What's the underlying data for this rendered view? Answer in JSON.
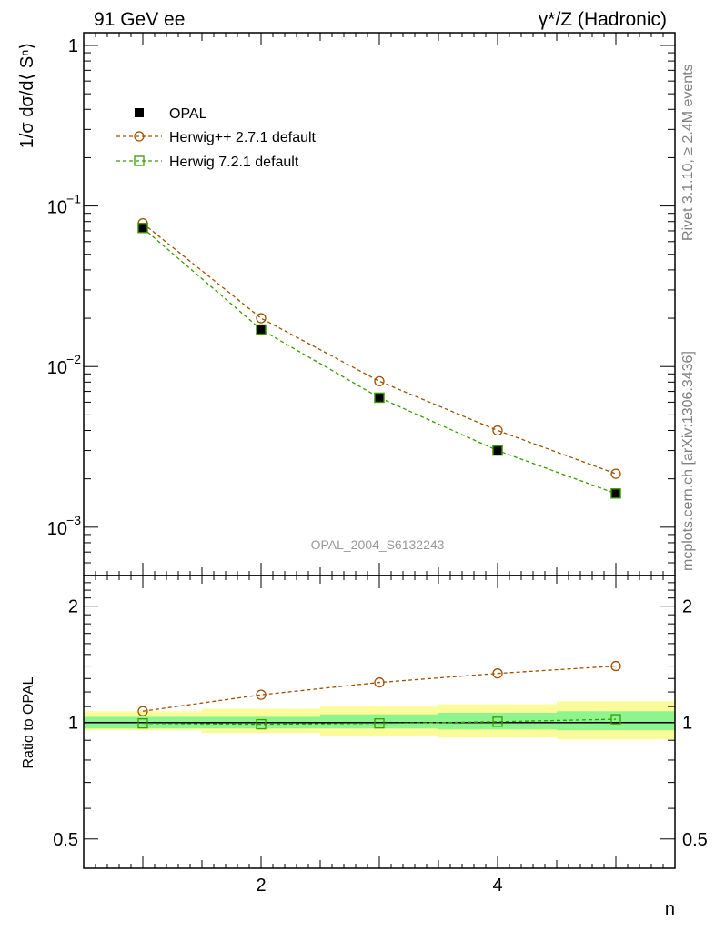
{
  "header": {
    "left": "91 GeV ee",
    "right": "γ*/Z (Hadronic)"
  },
  "side_labels": {
    "rivet": "Rivet 3.1.10, ≥ 2.4M events",
    "mcplots": "mcplots.cern.ch [arXiv:1306.3436]"
  },
  "watermark": "OPAL_2004_S6132243",
  "colors": {
    "data": "#000000",
    "herwigpp": "#a05000",
    "herwig7": "#3a9a00",
    "band_inner": "#8ef58e",
    "band_outer": "#fbfb9a"
  },
  "chart_data": [
    {
      "type": "line",
      "title": "",
      "ylabel": "1/σ dσ/d⟨ Sⁿ⟩",
      "xlabel": "n",
      "yscale": "log",
      "xlim": [
        0.5,
        5.5
      ],
      "ylim": [
        0.0005,
        1.2
      ],
      "y_ticks": [
        {
          "value": 0.001,
          "base": "10",
          "exp": "−3"
        },
        {
          "value": 0.01,
          "base": "10",
          "exp": "−2"
        },
        {
          "value": 0.1,
          "base": "10",
          "exp": "−1"
        },
        {
          "value": 1,
          "label": "1"
        }
      ],
      "legend_position": "top-left",
      "x": [
        1,
        2,
        3,
        4,
        5
      ],
      "series": [
        {
          "name": "OPAL",
          "key": "data",
          "marker": "filled-square",
          "values": [
            0.073,
            0.017,
            0.0064,
            0.003,
            0.00162
          ]
        },
        {
          "name": "Herwig++ 2.7.1 default",
          "key": "herwigpp",
          "marker": "open-circle",
          "values": [
            0.078,
            0.02,
            0.0081,
            0.004,
            0.00215
          ]
        },
        {
          "name": "Herwig 7.2.1 default",
          "key": "herwig7",
          "marker": "open-square",
          "values": [
            0.073,
            0.017,
            0.0064,
            0.003,
            0.00162
          ]
        }
      ]
    },
    {
      "type": "line",
      "title": "",
      "ylabel": "Ratio to OPAL",
      "xlabel": "n",
      "yscale": "log",
      "xlim": [
        0.5,
        5.5
      ],
      "ylim": [
        0.42,
        2.4
      ],
      "y_ticks": [
        {
          "value": 0.5,
          "label": "0.5"
        },
        {
          "value": 1,
          "label": "1"
        },
        {
          "value": 2,
          "label": "2"
        }
      ],
      "x_ticks": [
        {
          "value": 2,
          "label": "2"
        },
        {
          "value": 4,
          "label": "4"
        }
      ],
      "x": [
        1,
        2,
        3,
        4,
        5
      ],
      "bands": [
        {
          "x_low": 0.5,
          "x_high": 1.5,
          "inner": [
            0.965,
            1.035
          ],
          "outer": [
            0.955,
            1.07
          ]
        },
        {
          "x_low": 1.5,
          "x_high": 2.5,
          "inner": [
            0.965,
            1.035
          ],
          "outer": [
            0.94,
            1.085
          ]
        },
        {
          "x_low": 2.5,
          "x_high": 3.5,
          "inner": [
            0.965,
            1.05
          ],
          "outer": [
            0.925,
            1.1
          ]
        },
        {
          "x_low": 3.5,
          "x_high": 4.5,
          "inner": [
            0.96,
            1.06
          ],
          "outer": [
            0.915,
            1.115
          ]
        },
        {
          "x_low": 4.5,
          "x_high": 5.5,
          "inner": [
            0.955,
            1.07
          ],
          "outer": [
            0.905,
            1.135
          ]
        }
      ],
      "series": [
        {
          "name": "Herwig++ 2.7.1 default",
          "key": "herwigpp",
          "marker": "open-circle",
          "values": [
            1.07,
            1.18,
            1.27,
            1.34,
            1.4
          ]
        },
        {
          "name": "Herwig 7.2.1 default",
          "key": "herwig7",
          "marker": "open-square",
          "values": [
            0.995,
            0.99,
            0.995,
            1.005,
            1.02
          ]
        }
      ]
    }
  ]
}
